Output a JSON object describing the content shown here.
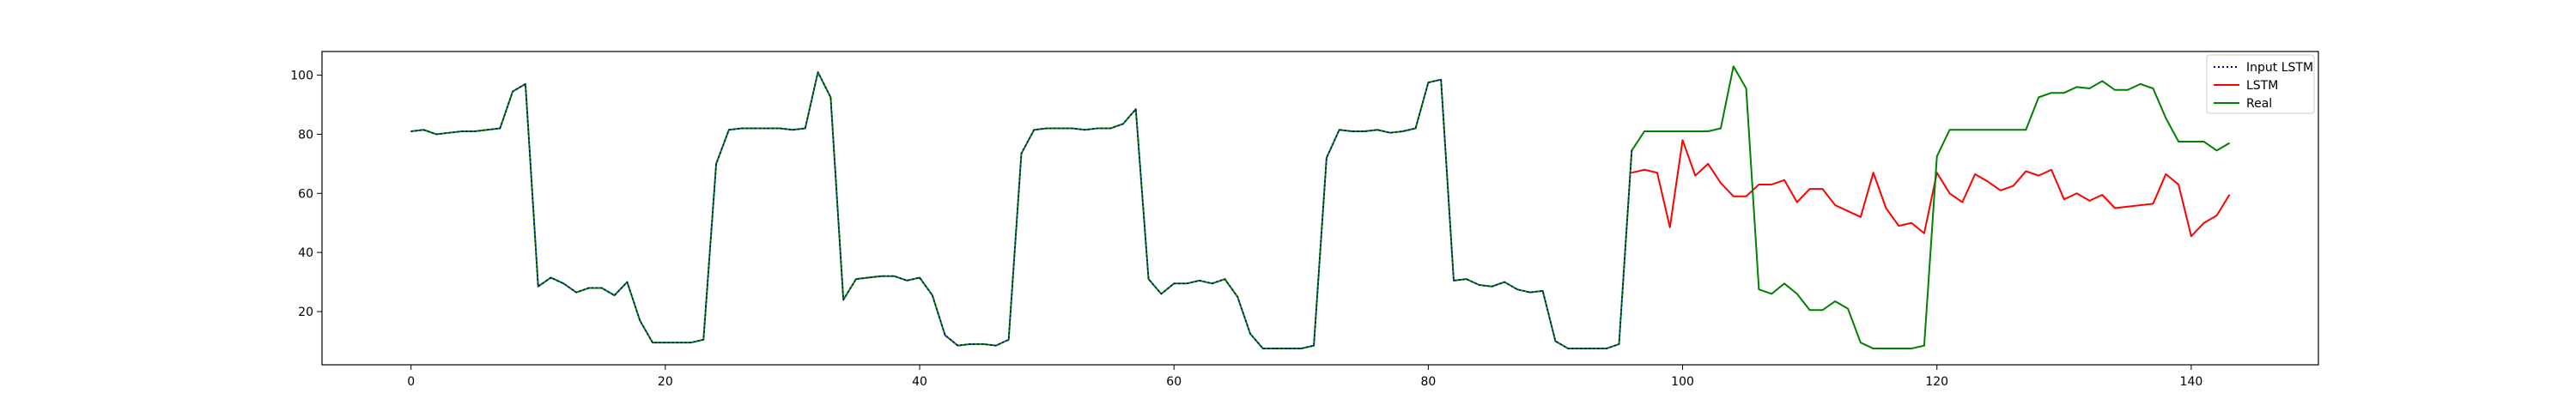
{
  "chart_data": {
    "type": "line",
    "xlim": [
      -7,
      150
    ],
    "ylim": [
      2,
      108
    ],
    "xticks": [
      0,
      20,
      40,
      60,
      80,
      100,
      120,
      140
    ],
    "yticks": [
      20,
      40,
      60,
      80,
      100
    ],
    "legend_position": "top-right",
    "grid": false,
    "series": [
      {
        "name": "Input LSTM",
        "color": "#00008b",
        "style": "dotted",
        "x_start": 0,
        "values": [
          81,
          81.5,
          80,
          80.5,
          81,
          81,
          81.5,
          82,
          94.5,
          97,
          28.5,
          31.5,
          29.5,
          26.5,
          28,
          28,
          25.5,
          30,
          17,
          9.5,
          9.5,
          9.5,
          9.5,
          10.5,
          70,
          81.5,
          82,
          82,
          82,
          82,
          81.5,
          82,
          101,
          92.5,
          24,
          31,
          31.5,
          32,
          32,
          30.5,
          31.5,
          25.5,
          12,
          8.5,
          9,
          9,
          8.5,
          10.5,
          73.5,
          81.5,
          82,
          82,
          82,
          81.5,
          82,
          82,
          83.5,
          88.5,
          31,
          26,
          29.5,
          29.5,
          30.5,
          29.5,
          31,
          25,
          12.5,
          7.5,
          7.5,
          7.5,
          7.5,
          8.5,
          72,
          81.5,
          81,
          81,
          81.5,
          80.5,
          81,
          82,
          97.5,
          98.5,
          30.5,
          31,
          29,
          28.5,
          30,
          27.5,
          26.5,
          27,
          10,
          7.5,
          7.5,
          7.5,
          7.5,
          9,
          74.5
        ]
      },
      {
        "name": "LSTM",
        "color": "#ff0000",
        "style": "solid",
        "x_start": 96,
        "values": [
          67,
          68,
          67,
          48.5,
          78,
          66,
          70,
          63.5,
          59,
          59,
          63,
          63,
          64.5,
          57,
          61.5,
          61.5,
          56,
          54,
          52,
          67,
          55,
          49,
          50,
          46.5,
          67,
          60,
          57,
          66.5,
          64,
          61,
          62.5,
          67.5,
          66,
          68,
          58,
          60,
          57.5,
          59.5,
          55,
          55.5,
          56,
          56.5,
          66.5,
          63,
          45.5,
          50,
          52.5,
          59.5
        ]
      },
      {
        "name": "Real",
        "color": "#008000",
        "style": "solid",
        "x_start": 0,
        "values": [
          81,
          81.5,
          80,
          80.5,
          81,
          81,
          81.5,
          82,
          94.5,
          97,
          28.5,
          31.5,
          29.5,
          26.5,
          28,
          28,
          25.5,
          30,
          17,
          9.5,
          9.5,
          9.5,
          9.5,
          10.5,
          70,
          81.5,
          82,
          82,
          82,
          82,
          81.5,
          82,
          101,
          92.5,
          24,
          31,
          31.5,
          32,
          32,
          30.5,
          31.5,
          25.5,
          12,
          8.5,
          9,
          9,
          8.5,
          10.5,
          73.5,
          81.5,
          82,
          82,
          82,
          81.5,
          82,
          82,
          83.5,
          88.5,
          31,
          26,
          29.5,
          29.5,
          30.5,
          29.5,
          31,
          25,
          12.5,
          7.5,
          7.5,
          7.5,
          7.5,
          8.5,
          72,
          81.5,
          81,
          81,
          81.5,
          80.5,
          81,
          82,
          97.5,
          98.5,
          30.5,
          31,
          29,
          28.5,
          30,
          27.5,
          26.5,
          27,
          10,
          7.5,
          7.5,
          7.5,
          7.5,
          9,
          74.5,
          81,
          81,
          81,
          81,
          81,
          81,
          82,
          103,
          95.5,
          27.5,
          26,
          29.5,
          26,
          20.5,
          20.5,
          23.5,
          21,
          9.5,
          7.5,
          7.5,
          7.5,
          7.5,
          8.5,
          72.5,
          81.5,
          81.5,
          81.5,
          81.5,
          81.5,
          81.5,
          81.5,
          92.5,
          94,
          94,
          96,
          95.5,
          98,
          95,
          95,
          97,
          95.5,
          85.5,
          77.5,
          77.5,
          77.5,
          74.5,
          77
        ]
      }
    ]
  }
}
